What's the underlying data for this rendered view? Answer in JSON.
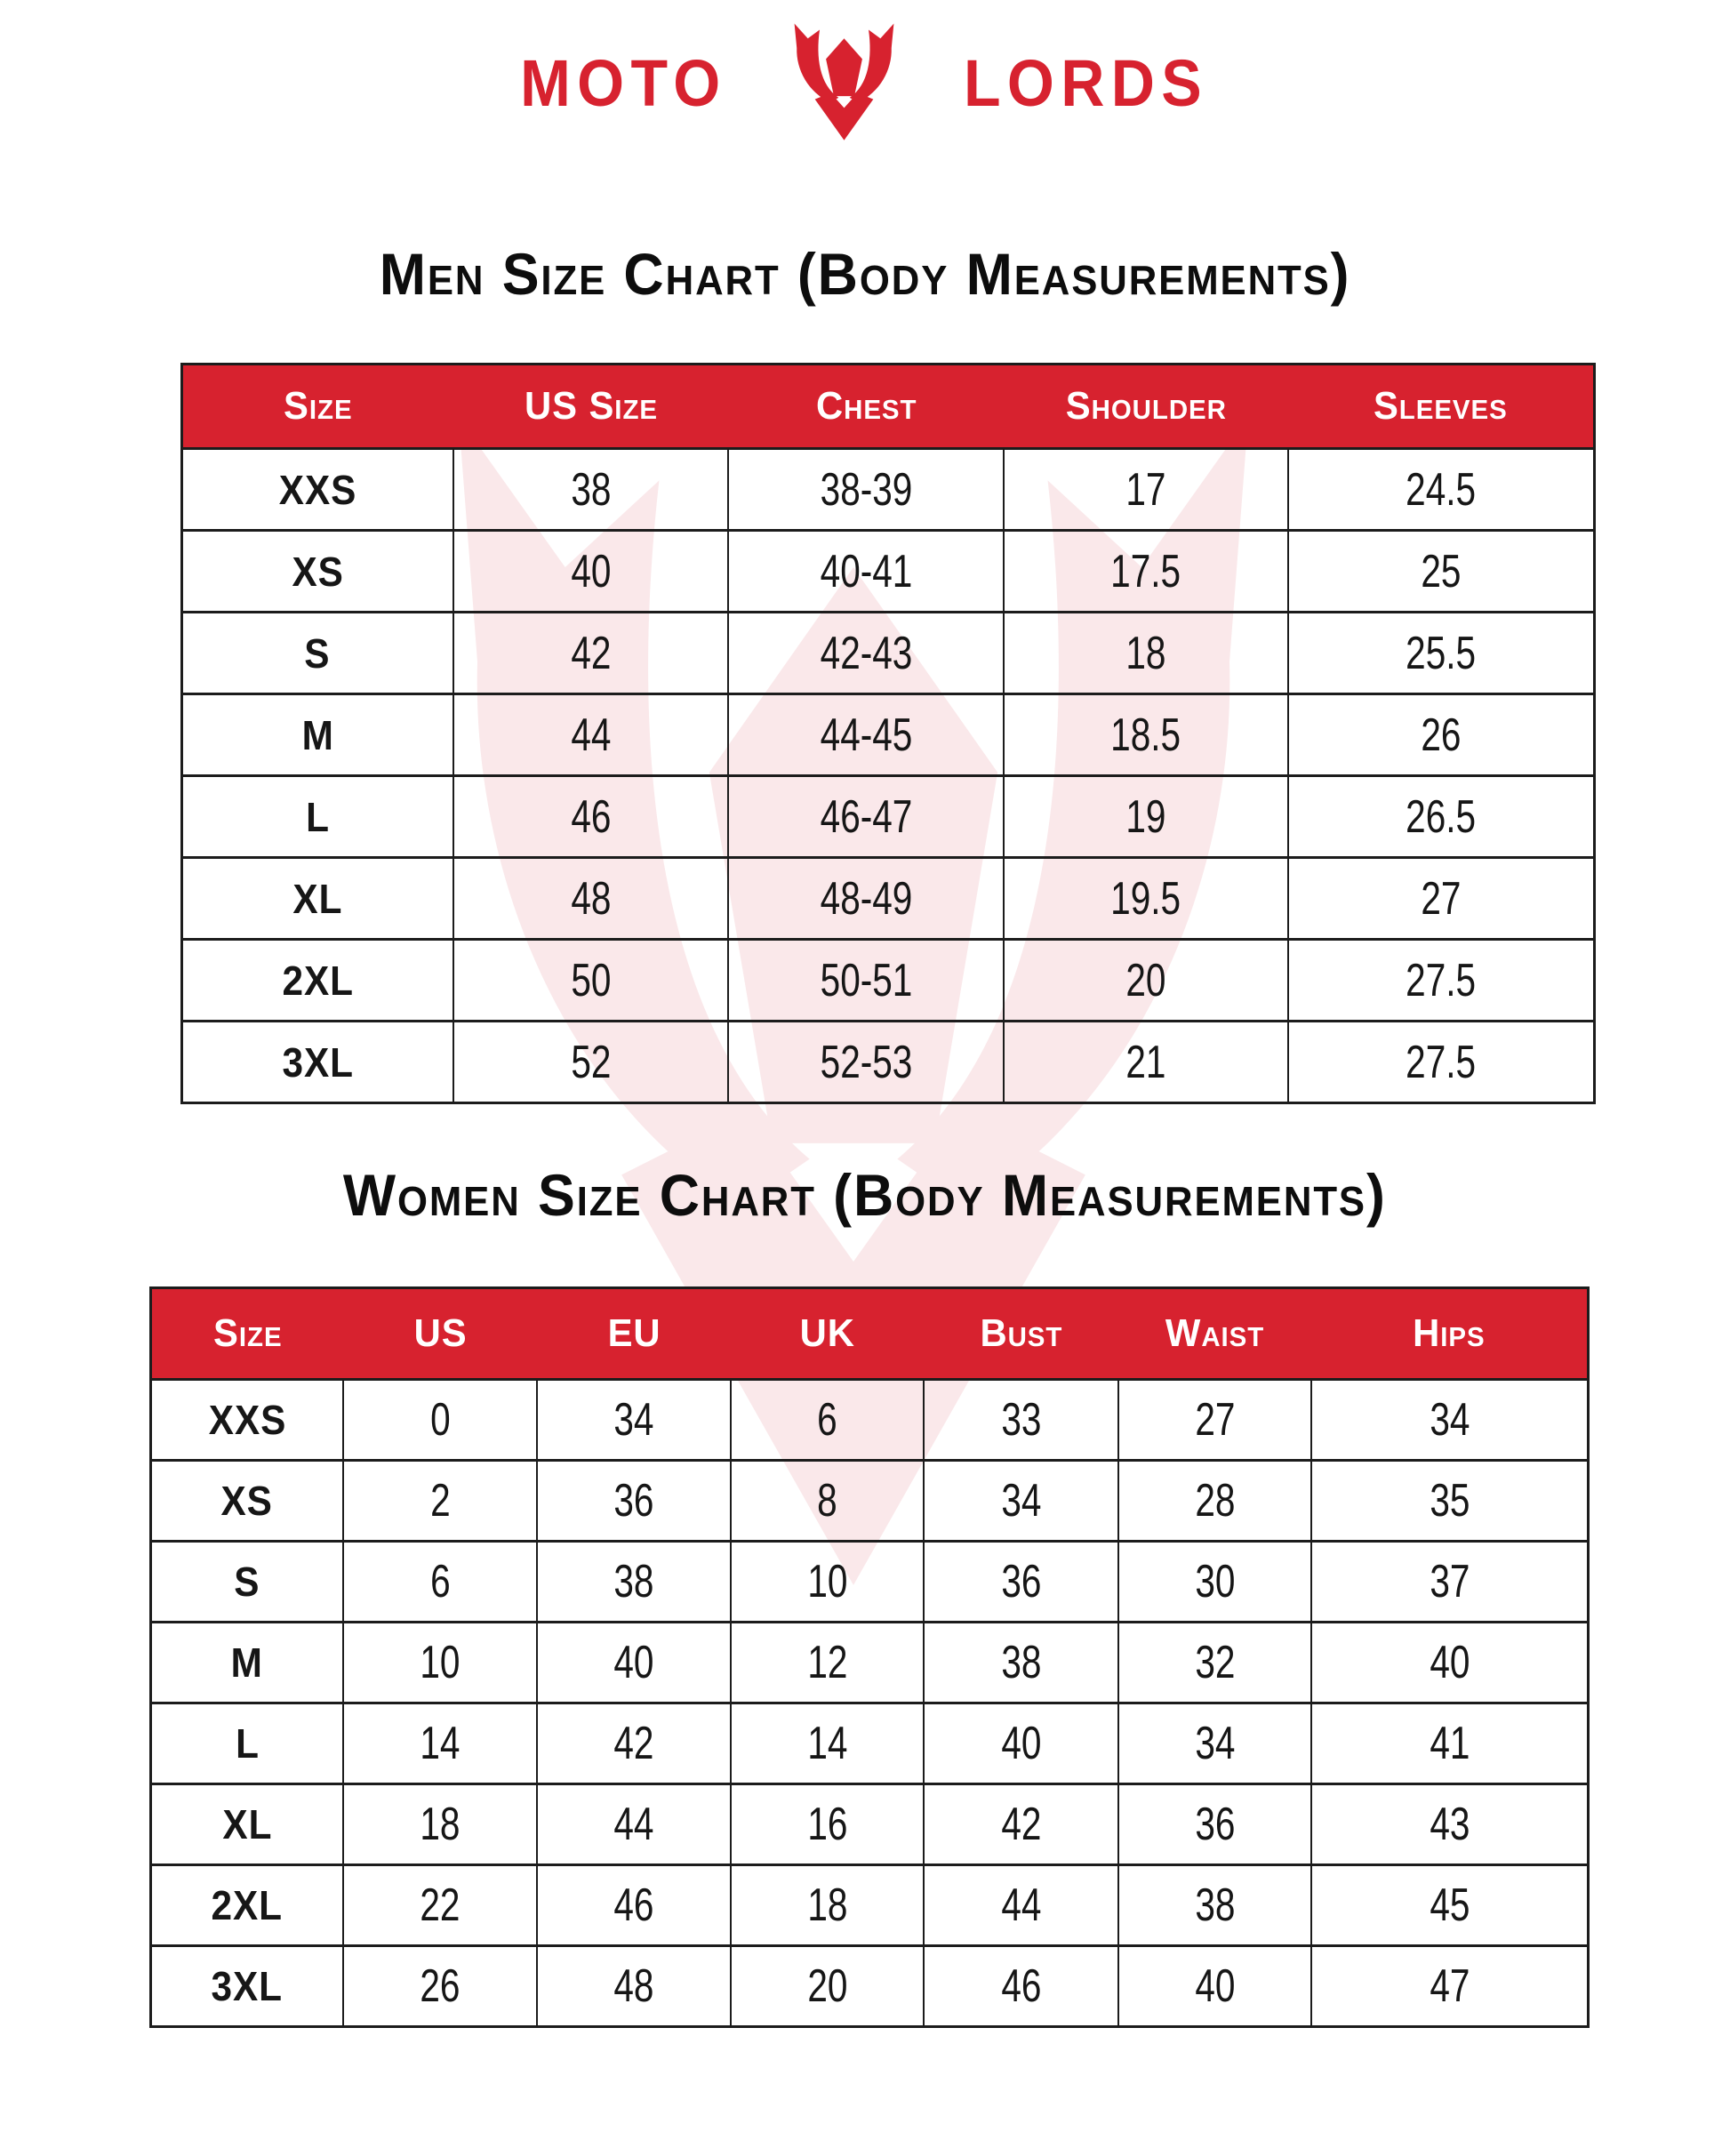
{
  "logo": {
    "left": "MOTO",
    "right": "LORDS",
    "emblem_icon": "horned-helmet-icon"
  },
  "men_chart": {
    "title": "Men Size Chart (Body Measurements)",
    "headers": [
      "Size",
      "US Size",
      "Chest",
      "Shoulder",
      "Sleeves"
    ],
    "rows": [
      [
        "XXS",
        "38",
        "38-39",
        "17",
        "24.5"
      ],
      [
        "XS",
        "40",
        "40-41",
        "17.5",
        "25"
      ],
      [
        "S",
        "42",
        "42-43",
        "18",
        "25.5"
      ],
      [
        "M",
        "44",
        "44-45",
        "18.5",
        "26"
      ],
      [
        "L",
        "46",
        "46-47",
        "19",
        "26.5"
      ],
      [
        "XL",
        "48",
        "48-49",
        "19.5",
        "27"
      ],
      [
        "2XL",
        "50",
        "50-51",
        "20",
        "27.5"
      ],
      [
        "3XL",
        "52",
        "52-53",
        "21",
        "27.5"
      ]
    ]
  },
  "women_chart": {
    "title": "Women Size Chart (Body Measurements)",
    "headers": [
      "Size",
      "US",
      "EU",
      "UK",
      "Bust",
      "Waist",
      "Hips"
    ],
    "rows": [
      [
        "XXS",
        "0",
        "34",
        "6",
        "33",
        "27",
        "34"
      ],
      [
        "XS",
        "2",
        "36",
        "8",
        "34",
        "28",
        "35"
      ],
      [
        "S",
        "6",
        "38",
        "10",
        "36",
        "30",
        "37"
      ],
      [
        "M",
        "10",
        "40",
        "12",
        "38",
        "32",
        "40"
      ],
      [
        "L",
        "14",
        "42",
        "14",
        "40",
        "34",
        "41"
      ],
      [
        "XL",
        "18",
        "44",
        "16",
        "42",
        "36",
        "43"
      ],
      [
        "2XL",
        "22",
        "46",
        "18",
        "44",
        "38",
        "45"
      ],
      [
        "3XL",
        "26",
        "48",
        "20",
        "46",
        "40",
        "47"
      ]
    ]
  },
  "colors": {
    "brand_red": "#D7222F",
    "watermark_pink": "#FAE8EA",
    "table_border": "#1c1c1c"
  }
}
